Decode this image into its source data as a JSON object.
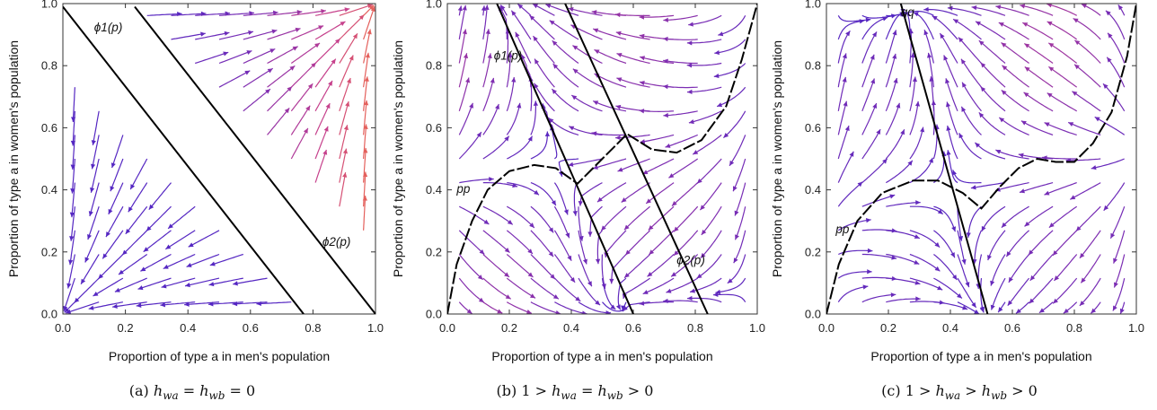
{
  "chart_data": [
    {
      "type": "streamplot",
      "caption": "(a) h_wa = h_wb = 0",
      "caption_parts": {
        "prefix": "(a) ",
        "lhs": "h",
        "lhs_sub": "wa",
        "rel": " = ",
        "mid": "h",
        "mid_sub": "wb",
        "tail": " = 0"
      },
      "xlabel": "Proportion of type a in men's population",
      "ylabel": "Proportion of type a in women's population",
      "xlim": [
        0,
        1
      ],
      "ylim": [
        0,
        1
      ],
      "xticks": [
        "0.0",
        "0.2",
        "0.4",
        "0.6",
        "0.8",
        "1.0"
      ],
      "yticks": [
        "0.0",
        "0.2",
        "0.4",
        "0.6",
        "0.8",
        "1.0"
      ],
      "curves": [
        {
          "label": "ϕ1(p)",
          "points": [
            [
              0.0,
              0.99
            ],
            [
              0.77,
              0.0
            ]
          ]
        },
        {
          "label": "ϕ2(p)",
          "points": [
            [
              0.23,
              0.99
            ],
            [
              1.0,
              0.0
            ]
          ]
        }
      ]
    },
    {
      "type": "streamplot",
      "caption": "(b) 1 > h_wa = h_wb > 0",
      "caption_parts": {
        "prefix": "(b) ",
        "pre": "1 > ",
        "lhs": "h",
        "lhs_sub": "wa",
        "rel": " = ",
        "mid": "h",
        "mid_sub": "wb",
        "tail": " > 0"
      },
      "xlabel": "Proportion of type a in men's population",
      "ylabel": "Proportion of type a in women's population",
      "xlim": [
        0,
        1
      ],
      "ylim": [
        0,
        1
      ],
      "xticks": [
        "0.0",
        "0.2",
        "0.4",
        "0.6",
        "0.8",
        "1.0"
      ],
      "yticks": [
        "0.0",
        "0.2",
        "0.4",
        "0.6",
        "0.8",
        "1.0"
      ],
      "curves": [
        {
          "label": "ϕ1(p)",
          "points": [
            [
              0.16,
              1.0
            ],
            [
              0.6,
              0.0
            ]
          ]
        },
        {
          "label": "ϕ2(p)",
          "points": [
            [
              0.38,
              1.0
            ],
            [
              0.84,
              0.0
            ]
          ]
        },
        {
          "label": "pp",
          "points": [
            [
              0.0,
              0.0
            ],
            [
              0.03,
              0.16
            ],
            [
              0.08,
              0.3
            ],
            [
              0.13,
              0.4
            ],
            [
              0.2,
              0.46
            ],
            [
              0.28,
              0.48
            ],
            [
              0.35,
              0.47
            ],
            [
              0.42,
              0.42
            ],
            [
              0.5,
              0.5
            ],
            [
              0.58,
              0.58
            ],
            [
              0.66,
              0.53
            ],
            [
              0.74,
              0.52
            ],
            [
              0.82,
              0.56
            ],
            [
              0.9,
              0.67
            ],
            [
              0.95,
              0.82
            ],
            [
              1.0,
              1.0
            ]
          ]
        }
      ]
    },
    {
      "type": "streamplot",
      "caption": "(c) 1 > h_wa > h_wb > 0",
      "caption_parts": {
        "prefix": "(c) ",
        "pre": "1 > ",
        "lhs": "h",
        "lhs_sub": "wa",
        "rel": " > ",
        "mid": "h",
        "mid_sub": "wb",
        "tail": " > 0"
      },
      "xlabel": "Proportion of type a in men's population",
      "ylabel": "Proportion of type a in women's population",
      "xlim": [
        0,
        1
      ],
      "ylim": [
        0,
        1
      ],
      "xticks": [
        "0.0",
        "0.2",
        "0.4",
        "0.6",
        "0.8",
        "1.0"
      ],
      "yticks": [
        "0.0",
        "0.2",
        "0.4",
        "0.6",
        "0.8",
        "1.0"
      ],
      "curves": [
        {
          "label": "qq",
          "points": [
            [
              0.24,
              1.0
            ],
            [
              0.52,
              0.0
            ]
          ]
        },
        {
          "label": "pp",
          "points": [
            [
              0.0,
              0.0
            ],
            [
              0.04,
              0.16
            ],
            [
              0.1,
              0.3
            ],
            [
              0.18,
              0.39
            ],
            [
              0.28,
              0.43
            ],
            [
              0.36,
              0.43
            ],
            [
              0.44,
              0.39
            ],
            [
              0.5,
              0.34
            ],
            [
              0.56,
              0.41
            ],
            [
              0.62,
              0.47
            ],
            [
              0.68,
              0.5
            ],
            [
              0.74,
              0.49
            ],
            [
              0.8,
              0.49
            ],
            [
              0.86,
              0.55
            ],
            [
              0.92,
              0.65
            ],
            [
              0.97,
              0.83
            ],
            [
              1.0,
              1.0
            ]
          ]
        }
      ]
    }
  ]
}
